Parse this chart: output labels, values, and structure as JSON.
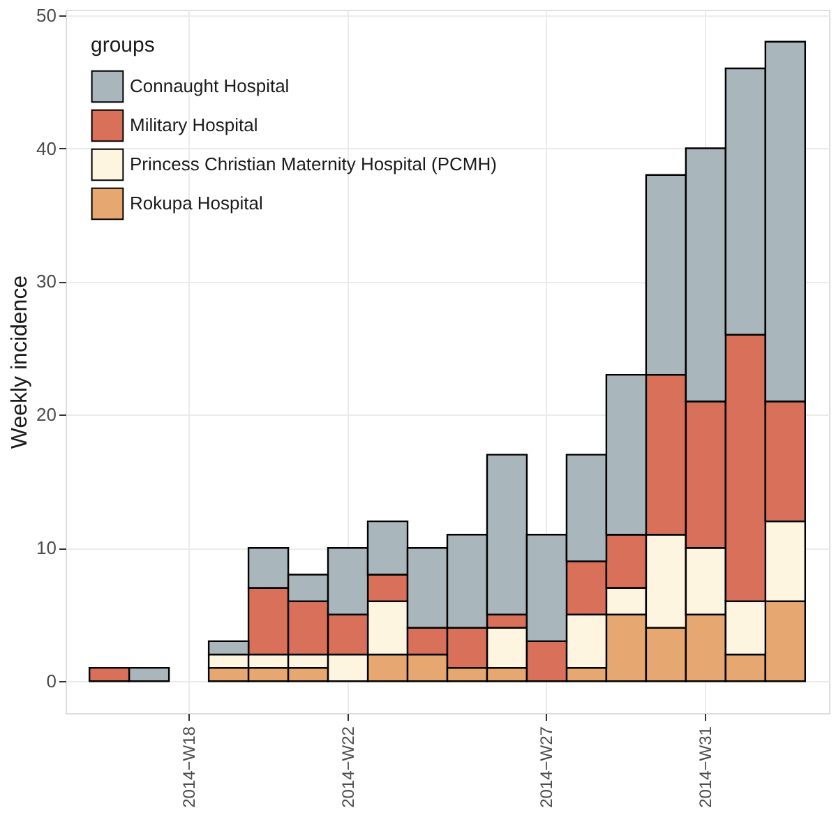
{
  "chart_data": {
    "type": "bar",
    "stacked": true,
    "ylabel": "Weekly incidence",
    "legend_title": "groups",
    "legend": "top left",
    "grid": true,
    "categories": [
      null,
      null,
      "2014−W18",
      null,
      null,
      null,
      "2014−W22",
      null,
      null,
      null,
      null,
      "2014−W27",
      null,
      null,
      null,
      "2014−W31",
      null,
      null
    ],
    "series": [
      {
        "name": "Rokupa Hospital",
        "color": "#e6a870",
        "values": [
          0,
          0,
          0,
          1,
          1,
          1,
          0,
          2,
          2,
          1,
          1,
          0,
          1,
          5,
          4,
          5,
          2,
          6
        ]
      },
      {
        "name": "Princess Christian Maternity Hospital (PCMH)",
        "color": "#fdf5e0",
        "values": [
          0,
          0,
          0,
          1,
          1,
          1,
          2,
          4,
          0,
          0,
          3,
          0,
          4,
          2,
          7,
          5,
          4,
          6
        ]
      },
      {
        "name": "Military Hospital",
        "color": "#d9705a",
        "values": [
          1,
          0,
          0,
          0,
          5,
          4,
          3,
          2,
          2,
          3,
          1,
          3,
          4,
          4,
          12,
          11,
          20,
          9
        ]
      },
      {
        "name": "Connaught Hospital",
        "color": "#a9b7bc",
        "values": [
          0,
          1,
          0,
          1,
          3,
          2,
          5,
          4,
          6,
          7,
          12,
          8,
          8,
          12,
          15,
          19,
          20,
          27
        ]
      }
    ],
    "ylim": [
      -2.4,
      50.4
    ],
    "yticks": [
      0,
      10,
      20,
      30,
      40,
      50
    ]
  }
}
